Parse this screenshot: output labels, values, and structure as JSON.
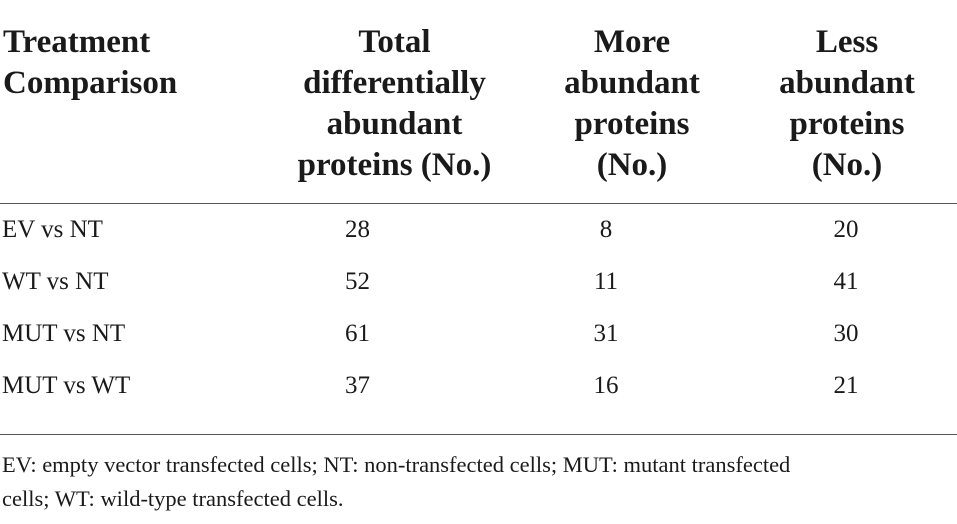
{
  "table": {
    "headers": [
      [
        "Treatment",
        "Comparison"
      ],
      [
        "Total",
        "differentially",
        "abundant",
        "proteins (No.)"
      ],
      [
        "More",
        "abundant",
        "proteins",
        "(No.)"
      ],
      [
        "Less",
        "abundant",
        "proteins",
        "(No.)"
      ]
    ],
    "rows": [
      {
        "comparison": "EV vs NT",
        "total": "28",
        "more": "8",
        "less": "20"
      },
      {
        "comparison": "WT vs NT",
        "total": "52",
        "more": "11",
        "less": "41"
      },
      {
        "comparison": "MUT vs NT",
        "total": "61",
        "more": "31",
        "less": "30"
      },
      {
        "comparison": "MUT vs WT",
        "total": "37",
        "more": "16",
        "less": "21"
      }
    ]
  },
  "footnote": {
    "line1": "EV: empty vector transfected cells; NT: non-transfected cells; MUT: mutant transfected",
    "line2": "cells; WT: wild-type transfected cells."
  }
}
